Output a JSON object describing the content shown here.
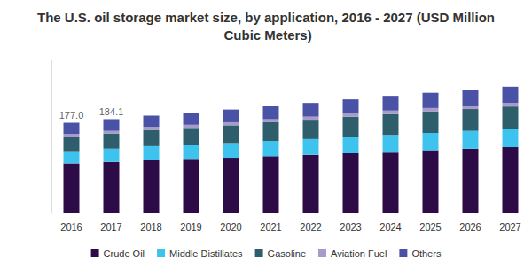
{
  "chart_data": {
    "type": "bar",
    "title": "The U.S. oil storage market size, by application, 2016 - 2027 (USD Million Cubic Meters)",
    "categories": [
      "2016",
      "2017",
      "2018",
      "2019",
      "2020",
      "2021",
      "2022",
      "2023",
      "2024",
      "2025",
      "2026",
      "2027"
    ],
    "series": [
      {
        "name": "Crude Oil",
        "color": "#2d0b47",
        "values": [
          97,
          100,
          104,
          106,
          108,
          111,
          114,
          117,
          120,
          123,
          126,
          129
        ]
      },
      {
        "name": "Middle Distillates",
        "color": "#3ec3ef",
        "values": [
          24,
          26,
          27,
          28,
          29,
          30,
          31,
          32,
          33,
          34,
          35,
          36
        ]
      },
      {
        "name": "Gasoline",
        "color": "#2e5e6c",
        "values": [
          29,
          30,
          32,
          33,
          35,
          37,
          38,
          40,
          41,
          42,
          43,
          44
        ]
      },
      {
        "name": "Aviation Fuel",
        "color": "#a79bc9",
        "values": [
          5,
          5,
          6,
          6,
          6,
          6,
          6,
          6,
          7,
          7,
          7,
          7
        ]
      },
      {
        "name": "Others",
        "color": "#4a52a6",
        "values": [
          22,
          23.1,
          22,
          24,
          25,
          26,
          27,
          28,
          29,
          30,
          31,
          32
        ]
      }
    ],
    "stacked": true,
    "ylim": [
      0,
      300
    ],
    "tick_labels": "x",
    "grid": false,
    "legend": "bottom",
    "annotations": [
      {
        "category": "2016",
        "value": 177.0,
        "label": "177.0"
      },
      {
        "category": "2017",
        "value": 184.1,
        "label": "184.1"
      }
    ]
  }
}
